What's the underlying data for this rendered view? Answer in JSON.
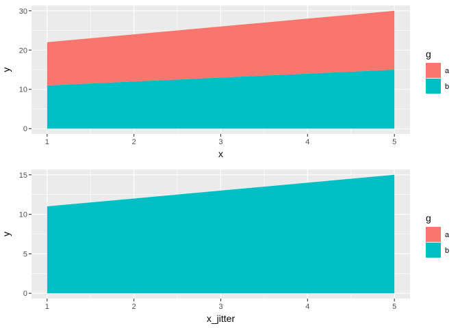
{
  "chart_data": [
    {
      "type": "area",
      "stacked": true,
      "x": [
        1,
        2,
        3,
        4,
        5
      ],
      "series": [
        {
          "name": "a",
          "values": [
            11,
            12,
            13,
            14,
            15
          ],
          "color": "#F8766D"
        },
        {
          "name": "b",
          "values": [
            11,
            12,
            13,
            14,
            15
          ],
          "color": "#00BFC4"
        }
      ],
      "xlabel": "x",
      "ylabel": "y",
      "xlim": [
        1,
        5
      ],
      "ylim": [
        0,
        30
      ],
      "x_ticks": [
        1,
        2,
        3,
        4,
        5
      ],
      "y_ticks": [
        0,
        10,
        20,
        30
      ],
      "grid": true,
      "legend": {
        "title": "g",
        "position": "right",
        "entries": [
          "a",
          "b"
        ]
      }
    },
    {
      "type": "area",
      "stacked": true,
      "x": [
        1,
        2,
        3,
        4,
        5
      ],
      "series": [
        {
          "name": "b",
          "values": [
            11,
            12,
            13,
            14,
            15
          ],
          "color": "#00BFC4"
        }
      ],
      "xlabel": "x_jitter",
      "ylabel": "y",
      "xlim": [
        1,
        5
      ],
      "ylim": [
        0,
        15
      ],
      "x_ticks": [
        1,
        2,
        3,
        4,
        5
      ],
      "y_ticks": [
        0,
        5,
        10,
        15
      ],
      "grid": true,
      "legend": {
        "title": "g",
        "position": "right",
        "entries": [
          "a",
          "b"
        ]
      }
    }
  ],
  "colors": {
    "panel_background": "#EBEBEB",
    "grid_line": "#FFFFFF",
    "series_a": "#F8766D",
    "series_b": "#00BFC4"
  }
}
